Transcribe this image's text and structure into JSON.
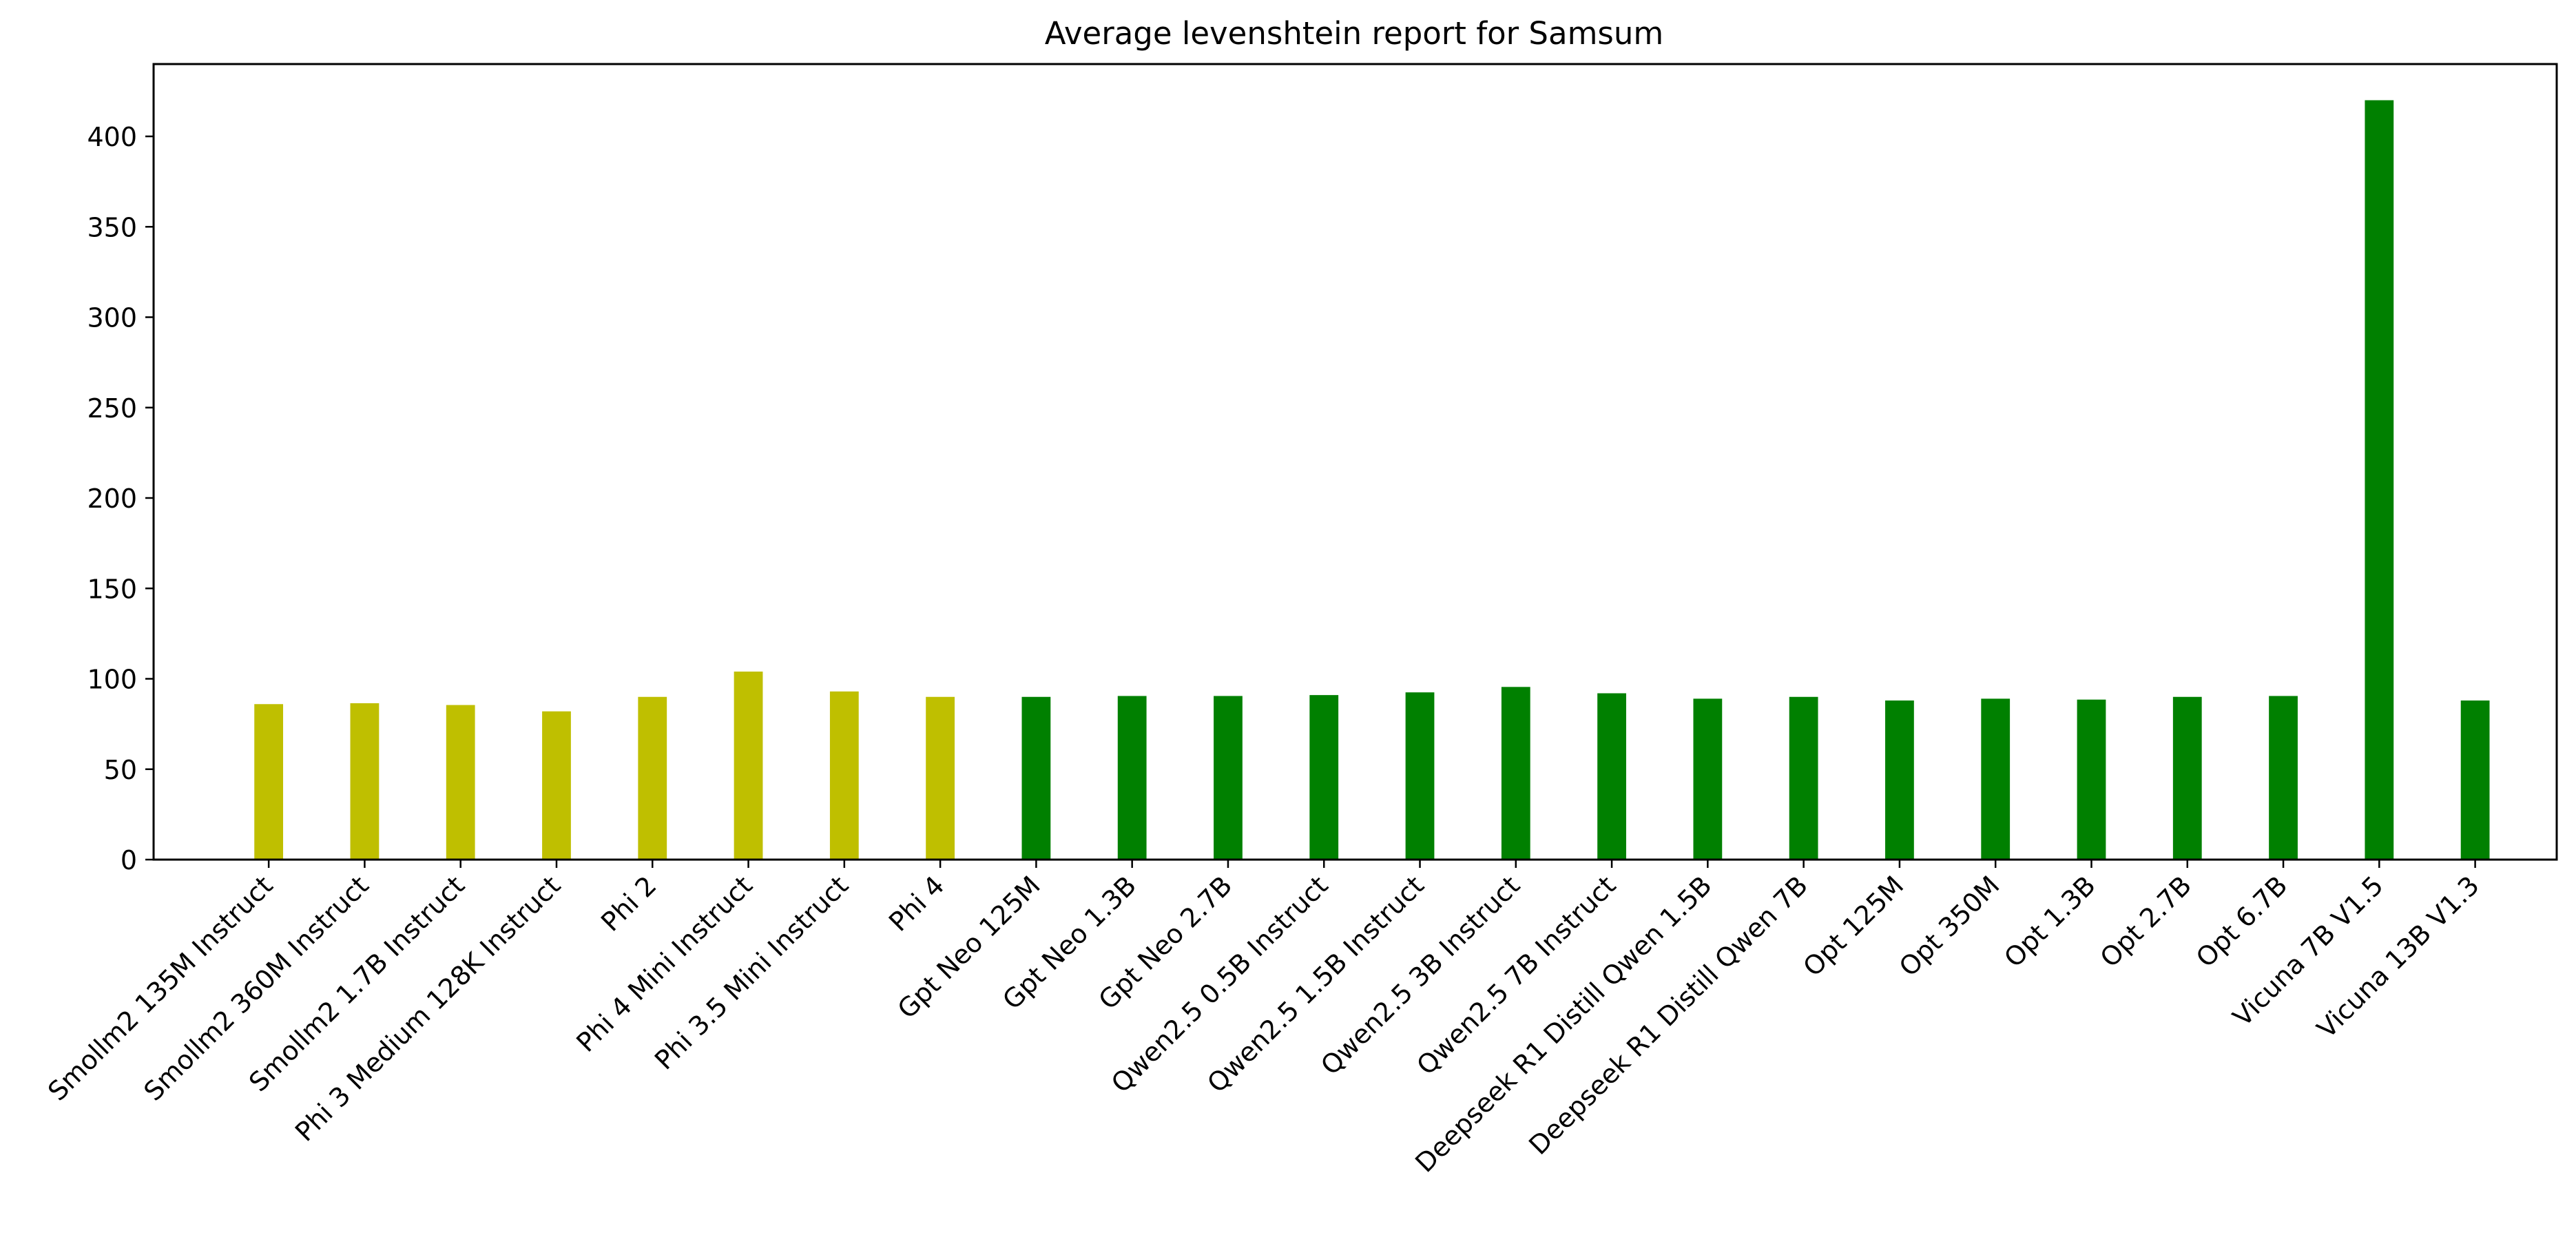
{
  "chart_data": {
    "type": "bar",
    "title": "Average levenshtein report for Samsum",
    "xlabel": "",
    "ylabel": "",
    "ylim": [
      0,
      440
    ],
    "yticks": [
      0,
      50,
      100,
      150,
      200,
      250,
      300,
      350,
      400
    ],
    "categories": [
      "Smollm2 135M Instruct",
      "Smollm2 360M Instruct",
      "Smollm2 1.7B Instruct",
      "Phi 3 Medium 128K Instruct",
      "Phi 2",
      "Phi 4 Mini Instruct",
      "Phi 3.5 Mini Instruct",
      "Phi 4",
      "Gpt Neo 125M",
      "Gpt Neo 1.3B",
      "Gpt Neo 2.7B",
      "Qwen2.5 0.5B Instruct",
      "Qwen2.5 1.5B Instruct",
      "Qwen2.5 3B Instruct",
      "Qwen2.5 7B Instruct",
      "Deepseek R1 Distill Qwen 1.5B",
      "Deepseek R1 Distill Qwen 7B",
      "Opt 125M",
      "Opt 350M",
      "Opt 1.3B",
      "Opt 2.7B",
      "Opt 6.7B",
      "Vicuna 7B V1.5",
      "Vicuna 13B V1.3"
    ],
    "values": [
      86,
      86.5,
      85.5,
      82,
      90,
      104,
      93,
      90,
      90,
      90.5,
      90.5,
      91,
      92.5,
      95.5,
      92,
      89,
      90,
      88,
      89,
      88.5,
      90,
      90.5,
      420,
      88
    ],
    "bar_colors": [
      "#bfbf00",
      "#bfbf00",
      "#bfbf00",
      "#bfbf00",
      "#bfbf00",
      "#bfbf00",
      "#bfbf00",
      "#bfbf00",
      "#008000",
      "#008000",
      "#008000",
      "#008000",
      "#008000",
      "#008000",
      "#008000",
      "#008000",
      "#008000",
      "#008000",
      "#008000",
      "#008000",
      "#008000",
      "#008000",
      "#008000",
      "#008000"
    ],
    "grid": false,
    "legend": false
  }
}
